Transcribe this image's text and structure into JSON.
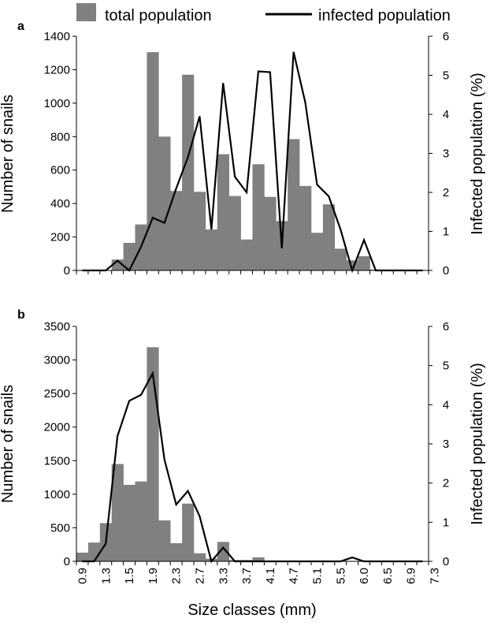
{
  "legend": {
    "bar_label": "total population",
    "line_label": "infected population",
    "bar_color": "#808080",
    "line_color": "#000000"
  },
  "x_axis": {
    "label": "Size classes (mm)",
    "tick_labels": [
      "0.9",
      "1.3",
      "1.5",
      "1.9",
      "2.3",
      "2.7",
      "3.3",
      "3.7",
      "4.1",
      "4.7",
      "5.1",
      "5.5",
      "6.0",
      "6.5",
      "6.9",
      "7.3"
    ]
  },
  "chart_data": [
    {
      "type": "bar",
      "panel": "a",
      "title": "",
      "xlabel": "",
      "ylabel": "Number of snails",
      "y2label": "Infected population (%)",
      "ylim": [
        0,
        1400
      ],
      "y2lim": [
        0,
        6
      ],
      "yticks": [
        0,
        200,
        400,
        600,
        800,
        1000,
        1200,
        1400
      ],
      "y2ticks": [
        0,
        1,
        2,
        3,
        4,
        5,
        6
      ],
      "grid": false,
      "legend_position": "top",
      "series": [
        {
          "name": "total population",
          "type": "bar",
          "values": [
            0,
            0,
            0,
            65,
            165,
            275,
            1305,
            800,
            475,
            1170,
            470,
            245,
            695,
            445,
            185,
            635,
            440,
            295,
            785,
            505,
            225,
            395,
            130,
            60,
            85,
            5,
            5,
            5,
            0,
            0
          ]
        },
        {
          "name": "infected population",
          "type": "line",
          "axis": "right",
          "values": [
            0,
            0,
            0,
            0.25,
            0,
            0.6,
            1.35,
            1.22,
            2.1,
            2.9,
            3.95,
            1.05,
            4.8,
            2.4,
            2.0,
            5.1,
            5.08,
            0.57,
            5.6,
            4.3,
            2.2,
            1.9,
            1.05,
            0,
            0.78,
            0,
            0,
            0,
            0,
            0
          ]
        }
      ]
    },
    {
      "type": "bar",
      "panel": "b",
      "title": "",
      "xlabel": "Size classes (mm)",
      "ylabel": "Number of snails",
      "y2label": "Infected population (%)",
      "ylim": [
        0,
        3500
      ],
      "y2lim": [
        0,
        6
      ],
      "yticks": [
        0,
        500,
        1000,
        1500,
        2000,
        2500,
        3000,
        3500
      ],
      "y2ticks": [
        0,
        1,
        2,
        3,
        4,
        5,
        6
      ],
      "grid": false,
      "series": [
        {
          "name": "total population",
          "type": "bar",
          "values": [
            130,
            280,
            570,
            1450,
            1140,
            1190,
            3190,
            610,
            270,
            860,
            120,
            40,
            290,
            20,
            20,
            60,
            0,
            5,
            5,
            0,
            5,
            0,
            0,
            5,
            0,
            0,
            0,
            0,
            0,
            0
          ]
        },
        {
          "name": "infected population",
          "type": "line",
          "axis": "right",
          "values": [
            0,
            0,
            0.45,
            3.2,
            4.1,
            4.25,
            4.8,
            2.6,
            1.45,
            1.8,
            1.15,
            0,
            0.35,
            0,
            0,
            0,
            0,
            0,
            0,
            0,
            0,
            0,
            0,
            0.1,
            0,
            0,
            0,
            0,
            0,
            0
          ]
        }
      ]
    }
  ]
}
